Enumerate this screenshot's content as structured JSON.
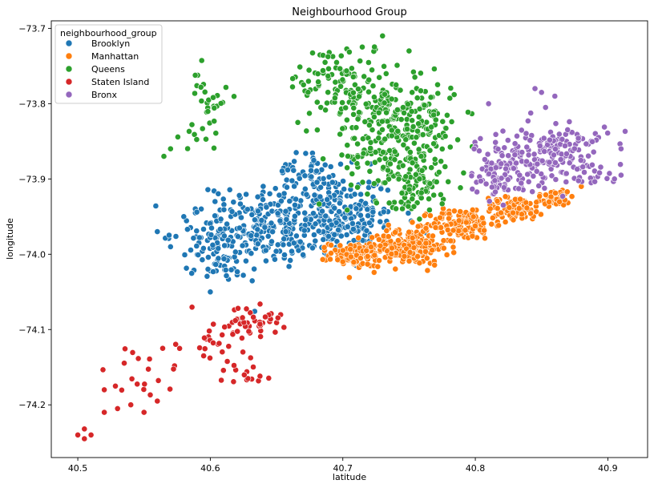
{
  "chart_data": {
    "type": "scatter",
    "title": "Neighbourhood Group",
    "xlabel": "latitude",
    "ylabel": "longitude",
    "xlim": [
      40.48,
      40.93
    ],
    "ylim": [
      -74.27,
      -73.69
    ],
    "y_inverted": true,
    "x_ticks": [
      "40.5",
      "40.6",
      "40.7",
      "40.8",
      "40.9"
    ],
    "x_tick_values": [
      40.5,
      40.6,
      40.7,
      40.8,
      40.9
    ],
    "y_ticks": [
      "−73.7",
      "−73.8",
      "−73.9",
      "−74.0",
      "−74.1",
      "−74.2"
    ],
    "y_tick_values": [
      -73.7,
      -73.8,
      -73.9,
      -74.0,
      -74.1,
      -74.2
    ],
    "grid": false,
    "legend": {
      "title": "neighbourhood_group",
      "placement": "top-left"
    },
    "series": [
      {
        "name": "Brooklyn",
        "color": "#1f77b4",
        "regions": [
          {
            "lat": 40.68,
            "lon": -73.95,
            "sx": 0.03,
            "sy": 0.03,
            "n": 260
          },
          {
            "lat": 40.64,
            "lon": -73.97,
            "sx": 0.02,
            "sy": 0.025,
            "n": 120
          },
          {
            "lat": 40.6,
            "lon": -73.97,
            "sx": 0.015,
            "sy": 0.022,
            "n": 60
          },
          {
            "lat": 40.61,
            "lon": -74.01,
            "sx": 0.012,
            "sy": 0.012,
            "n": 40
          },
          {
            "lat": 40.71,
            "lon": -73.96,
            "sx": 0.012,
            "sy": 0.02,
            "n": 70
          },
          {
            "lat": 40.67,
            "lon": -73.89,
            "sx": 0.01,
            "sy": 0.012,
            "n": 40
          }
        ],
        "points": [
          [
            40.58,
            -73.95
          ],
          [
            40.57,
            -73.99
          ],
          [
            40.6,
            -74.05
          ],
          [
            40.56,
            -73.97
          ]
        ]
      },
      {
        "name": "Manhattan",
        "color": "#ff7f0e",
        "regions": [
          {
            "lat": 40.71,
            "lon": -74.0,
            "sx": 0.01,
            "sy": 0.008,
            "n": 120
          },
          {
            "lat": 40.75,
            "lon": -73.99,
            "sx": 0.015,
            "sy": 0.012,
            "n": 180
          },
          {
            "lat": 40.79,
            "lon": -73.96,
            "sx": 0.012,
            "sy": 0.01,
            "n": 130
          },
          {
            "lat": 40.83,
            "lon": -73.94,
            "sx": 0.012,
            "sy": 0.008,
            "n": 90
          },
          {
            "lat": 40.86,
            "lon": -73.925,
            "sx": 0.008,
            "sy": 0.006,
            "n": 40
          }
        ],
        "points": [
          [
            40.7,
            -74.01
          ],
          [
            40.88,
            -73.91
          ]
        ]
      },
      {
        "name": "Queens",
        "color": "#2ca02c",
        "regions": [
          {
            "lat": 40.74,
            "lon": -73.87,
            "sx": 0.018,
            "sy": 0.03,
            "n": 140
          },
          {
            "lat": 40.72,
            "lon": -73.8,
            "sx": 0.02,
            "sy": 0.03,
            "n": 130
          },
          {
            "lat": 40.76,
            "lon": -73.82,
            "sx": 0.015,
            "sy": 0.025,
            "n": 90
          },
          {
            "lat": 40.76,
            "lon": -73.91,
            "sx": 0.01,
            "sy": 0.02,
            "n": 60
          },
          {
            "lat": 40.69,
            "lon": -73.77,
            "sx": 0.015,
            "sy": 0.025,
            "n": 60
          },
          {
            "lat": 40.6,
            "lon": -73.79,
            "sx": 0.007,
            "sy": 0.02,
            "n": 25
          },
          {
            "lat": 40.59,
            "lon": -73.84,
            "sx": 0.01,
            "sy": 0.01,
            "n": 10
          }
        ],
        "points": [
          [
            40.565,
            -73.87
          ],
          [
            40.73,
            -73.71
          ],
          [
            40.75,
            -73.73
          ],
          [
            40.57,
            -73.86
          ]
        ]
      },
      {
        "name": "Staten Island",
        "color": "#d62728",
        "regions": [
          {
            "lat": 40.63,
            "lon": -74.09,
            "sx": 0.012,
            "sy": 0.01,
            "n": 45
          },
          {
            "lat": 40.6,
            "lon": -74.12,
            "sx": 0.012,
            "sy": 0.02,
            "n": 25
          },
          {
            "lat": 40.63,
            "lon": -74.16,
            "sx": 0.008,
            "sy": 0.008,
            "n": 12
          },
          {
            "lat": 40.55,
            "lon": -74.16,
            "sx": 0.015,
            "sy": 0.02,
            "n": 18
          }
        ],
        "points": [
          [
            40.5,
            -74.24
          ],
          [
            40.505,
            -74.245
          ],
          [
            40.51,
            -74.24
          ],
          [
            40.52,
            -74.21
          ],
          [
            40.53,
            -74.205
          ],
          [
            40.54,
            -74.2
          ],
          [
            40.55,
            -74.21
          ],
          [
            40.52,
            -74.18
          ],
          [
            40.56,
            -74.195
          ],
          [
            40.505,
            -74.232
          ]
        ]
      },
      {
        "name": "Bronx",
        "color": "#9467bd",
        "regions": [
          {
            "lat": 40.84,
            "lon": -73.87,
            "sx": 0.02,
            "sy": 0.02,
            "n": 130
          },
          {
            "lat": 40.87,
            "lon": -73.86,
            "sx": 0.015,
            "sy": 0.02,
            "n": 70
          },
          {
            "lat": 40.82,
            "lon": -73.9,
            "sx": 0.012,
            "sy": 0.012,
            "n": 60
          },
          {
            "lat": 40.89,
            "lon": -73.89,
            "sx": 0.008,
            "sy": 0.008,
            "n": 20
          }
        ],
        "points": [
          [
            40.85,
            -73.785
          ],
          [
            40.86,
            -73.79
          ],
          [
            40.845,
            -73.78
          ],
          [
            40.91,
            -73.895
          ],
          [
            40.905,
            -73.9
          ],
          [
            40.91,
            -73.86
          ],
          [
            40.81,
            -73.8
          ]
        ]
      }
    ]
  }
}
